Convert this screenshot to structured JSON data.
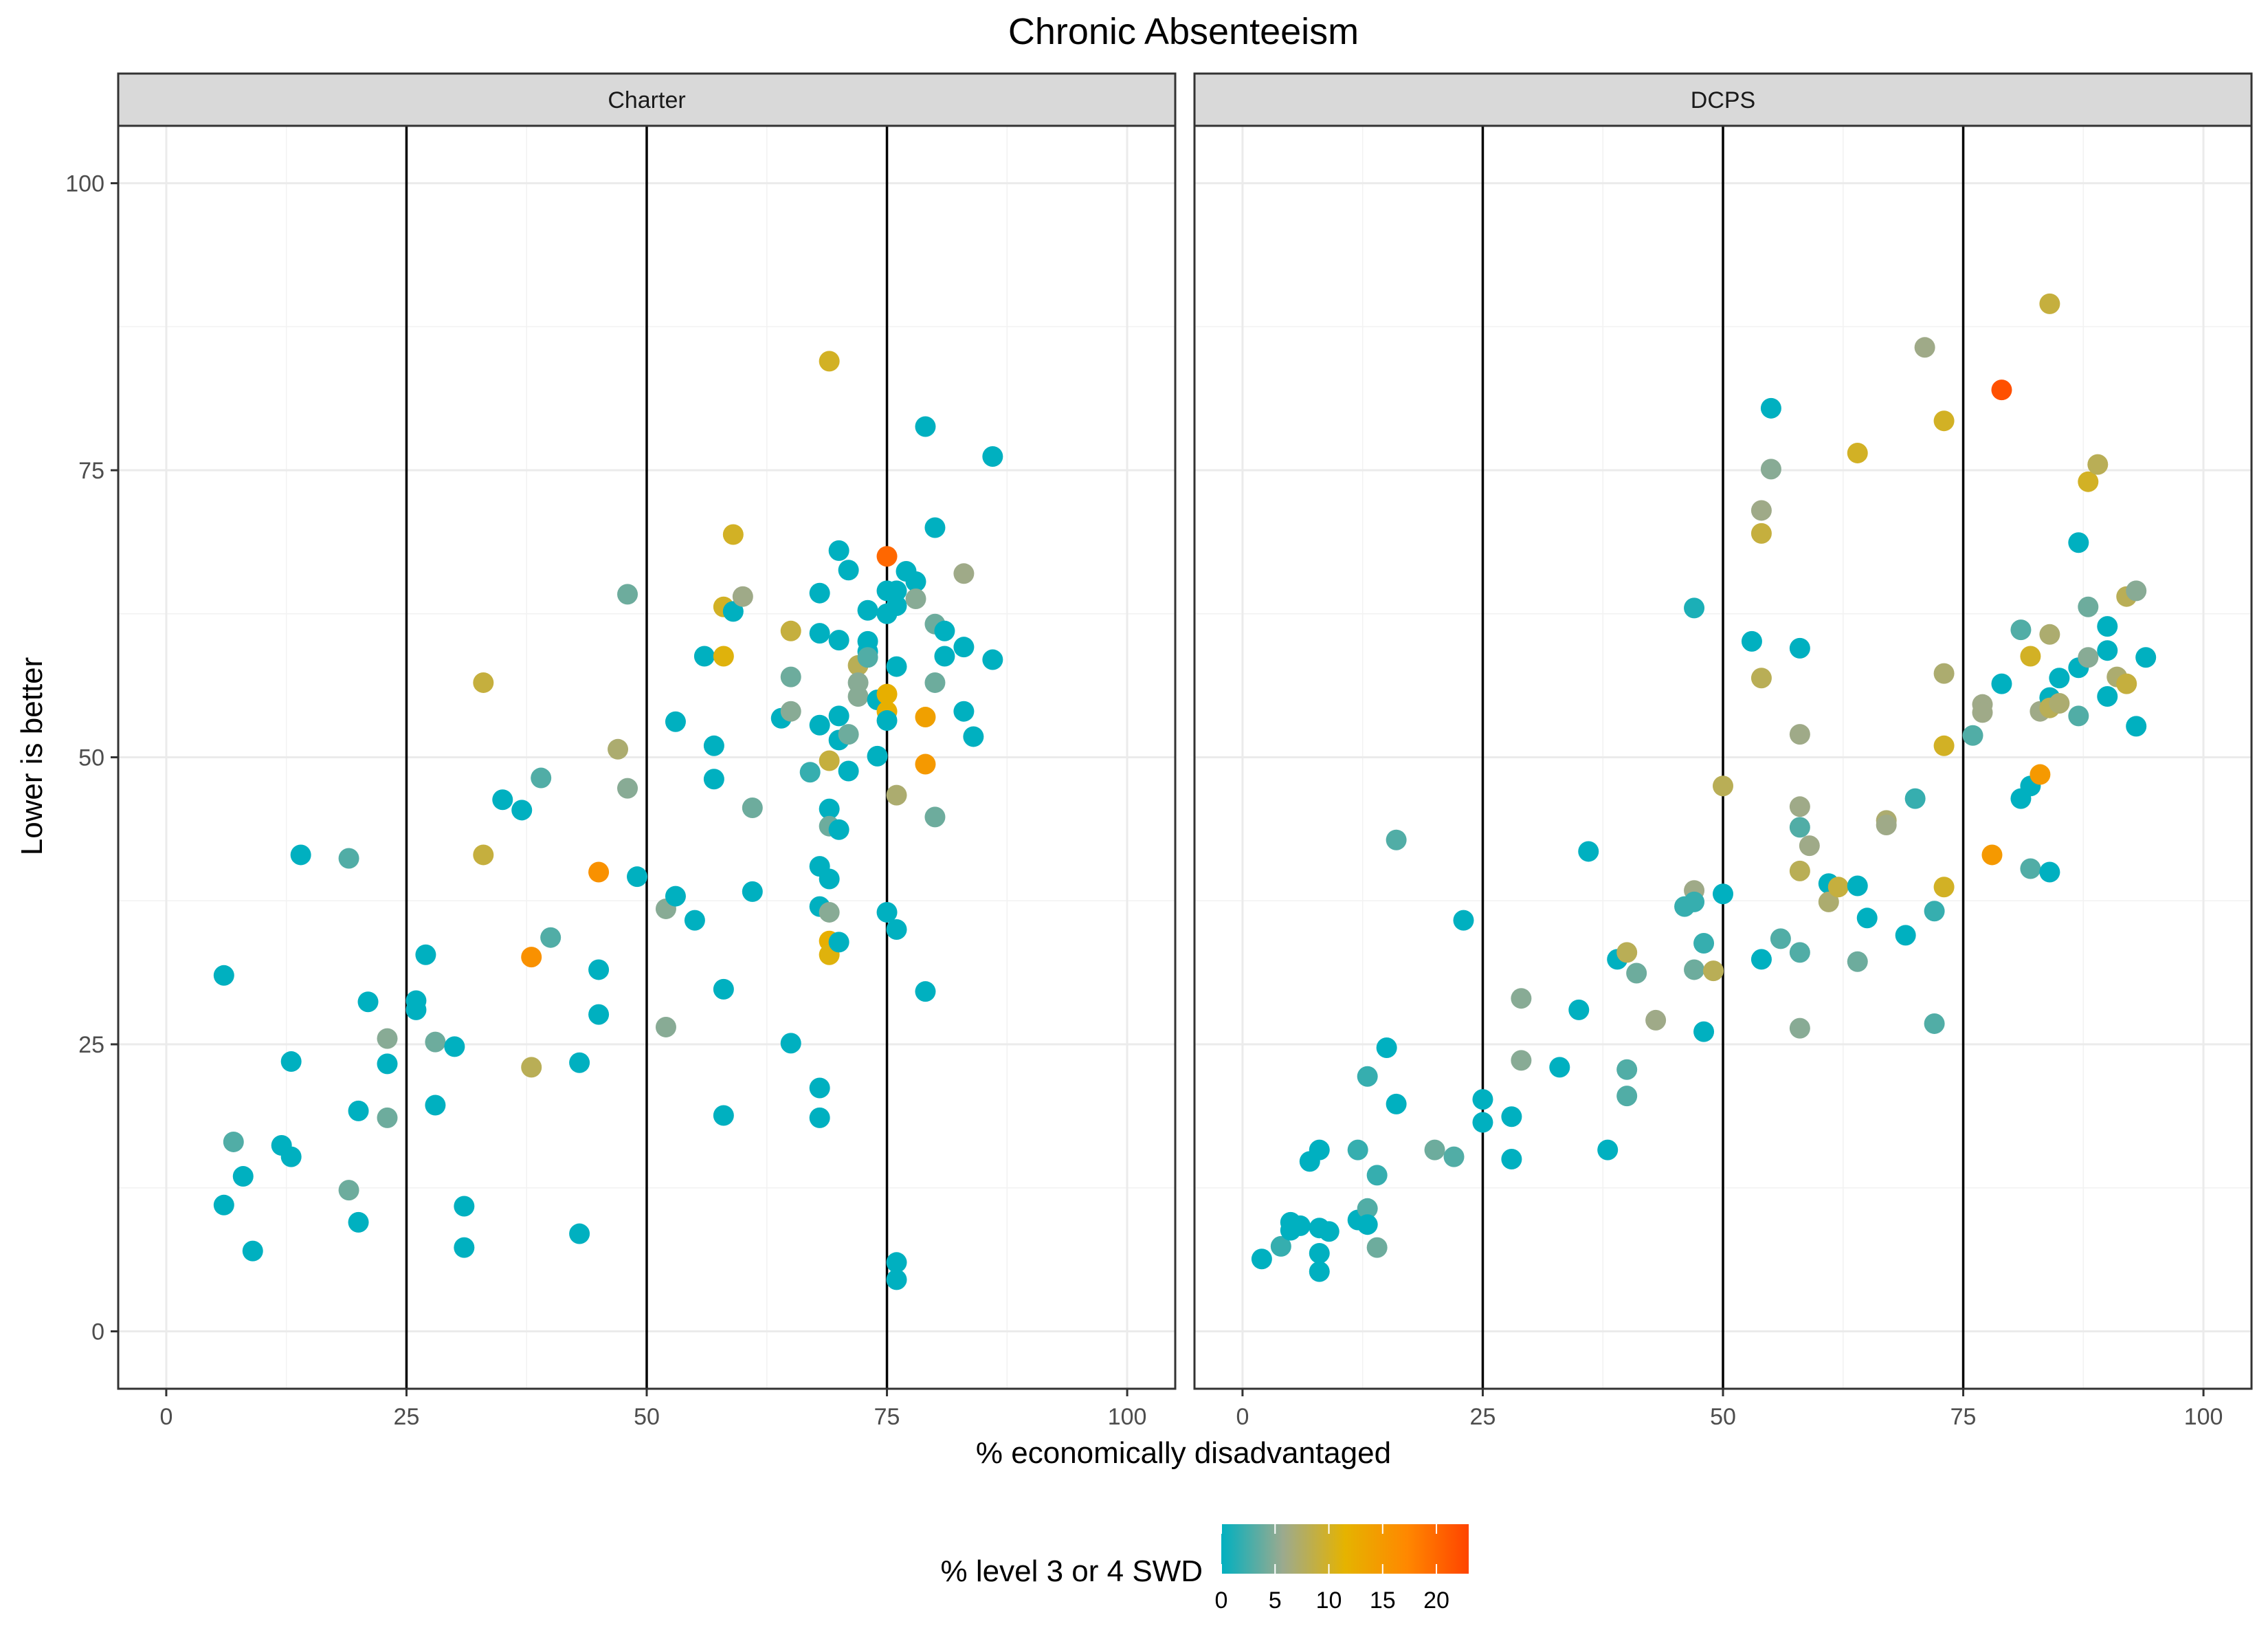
{
  "chart_data": {
    "type": "scatter",
    "title": "Chronic Absenteeism",
    "xlabel": "% economically disadvantaged",
    "ylabel": "Lower is better",
    "xlim": [
      -5,
      105
    ],
    "ylim": [
      -5,
      105
    ],
    "x_ticks": [
      0,
      25,
      50,
      75,
      100
    ],
    "y_ticks": [
      0,
      25,
      50,
      75,
      100
    ],
    "x_tick_labels": [
      "0",
      "25",
      "50",
      "75",
      "100"
    ],
    "y_tick_labels": [
      "0",
      "25",
      "50",
      "75",
      "100"
    ],
    "grid": true,
    "reference_lines_x": [
      25,
      50,
      75
    ],
    "color_scale": {
      "title": "% level 3 or 4 SWD",
      "ticks": [
        0,
        5,
        10,
        15,
        20
      ],
      "tick_labels": [
        "0",
        "5",
        "10",
        "15",
        "20"
      ],
      "range": [
        0,
        23
      ],
      "colors": [
        "#00B0C0",
        "#9CAA8E",
        "#E5B300",
        "#FF8800",
        "#FF4400"
      ]
    },
    "legend_position": "bottom",
    "panels": [
      {
        "name": "Charter",
        "points": [
          [
            6,
            31,
            0
          ],
          [
            6,
            11,
            0
          ],
          [
            7,
            16.5,
            3
          ],
          [
            8,
            13.5,
            0
          ],
          [
            9,
            7,
            0
          ],
          [
            12,
            16.2,
            0
          ],
          [
            13,
            15.2,
            0
          ],
          [
            13,
            23.5,
            0
          ],
          [
            14,
            41.5,
            0
          ],
          [
            19,
            41.2,
            3
          ],
          [
            19,
            12.3,
            4
          ],
          [
            20,
            19.2,
            0
          ],
          [
            20,
            9.5,
            0
          ],
          [
            21,
            28.7,
            0
          ],
          [
            23,
            23.3,
            0
          ],
          [
            23,
            25.5,
            5
          ],
          [
            23,
            18.6,
            4
          ],
          [
            26,
            28.8,
            0
          ],
          [
            26,
            28,
            0
          ],
          [
            27,
            32.8,
            0
          ],
          [
            28,
            25.2,
            4
          ],
          [
            28,
            19.7,
            0
          ],
          [
            30,
            24.8,
            0
          ],
          [
            31,
            10.9,
            0
          ],
          [
            31,
            7.3,
            0
          ],
          [
            33,
            56.5,
            9
          ],
          [
            33,
            41.5,
            9
          ],
          [
            35,
            46.3,
            0
          ],
          [
            37,
            45.4,
            0
          ],
          [
            38,
            32.6,
            16
          ],
          [
            38,
            23,
            8
          ],
          [
            39,
            48.2,
            3
          ],
          [
            40,
            34.3,
            3
          ],
          [
            43,
            23.4,
            0
          ],
          [
            43,
            8.5,
            0
          ],
          [
            45,
            40,
            16
          ],
          [
            45,
            31.5,
            0
          ],
          [
            45,
            27.6,
            0
          ],
          [
            47,
            50.7,
            7
          ],
          [
            48,
            64.2,
            4
          ],
          [
            48,
            47.3,
            5
          ],
          [
            49,
            39.6,
            0
          ],
          [
            52,
            36.8,
            5
          ],
          [
            52,
            26.5,
            5
          ],
          [
            53,
            53.1,
            0
          ],
          [
            53,
            37.9,
            0
          ],
          [
            55,
            35.8,
            0
          ],
          [
            56,
            58.8,
            0
          ],
          [
            57,
            51,
            0
          ],
          [
            57,
            48.1,
            0
          ],
          [
            58,
            63.1,
            10
          ],
          [
            58,
            58.8,
            11
          ],
          [
            58,
            29.8,
            0
          ],
          [
            58,
            18.8,
            0
          ],
          [
            59,
            69.4,
            10
          ],
          [
            59,
            62.7,
            0
          ],
          [
            60,
            64,
            6
          ],
          [
            61,
            45.6,
            4
          ],
          [
            61,
            38.3,
            0
          ],
          [
            64,
            53.4,
            0
          ],
          [
            65,
            61,
            9
          ],
          [
            65,
            57,
            4
          ],
          [
            65,
            54,
            5
          ],
          [
            65,
            25.1,
            0
          ],
          [
            67,
            48.7,
            2
          ],
          [
            68,
            64.3,
            0
          ],
          [
            68,
            60.8,
            0
          ],
          [
            68,
            52.8,
            0
          ],
          [
            68,
            40.5,
            0
          ],
          [
            68,
            37,
            0
          ],
          [
            68,
            21.2,
            0
          ],
          [
            68,
            18.6,
            0
          ],
          [
            69,
            84.5,
            10
          ],
          [
            69,
            49.7,
            9
          ],
          [
            69,
            45.5,
            0
          ],
          [
            69,
            44,
            4
          ],
          [
            69,
            39.4,
            0
          ],
          [
            69,
            36.5,
            5
          ],
          [
            69,
            34,
            12
          ],
          [
            69,
            32.8,
            11
          ],
          [
            70,
            68,
            0
          ],
          [
            70,
            60.2,
            0
          ],
          [
            70,
            53.6,
            0
          ],
          [
            70,
            51.5,
            0
          ],
          [
            70,
            43.7,
            0
          ],
          [
            70,
            33.9,
            0
          ],
          [
            71,
            66.3,
            0
          ],
          [
            71,
            52,
            4
          ],
          [
            71,
            48.8,
            0
          ],
          [
            72,
            58,
            8
          ],
          [
            72,
            56.5,
            5
          ],
          [
            72,
            55.3,
            5
          ],
          [
            73,
            62.8,
            0
          ],
          [
            73,
            60.1,
            0
          ],
          [
            73,
            59.2,
            0
          ],
          [
            73,
            58.7,
            3
          ],
          [
            74,
            55,
            0
          ],
          [
            74,
            50.1,
            0
          ],
          [
            75,
            67.5,
            20
          ],
          [
            75,
            64.5,
            0
          ],
          [
            75,
            62.5,
            0
          ],
          [
            75,
            55.5,
            12
          ],
          [
            75,
            54,
            12
          ],
          [
            75,
            53.2,
            0
          ],
          [
            75,
            36.5,
            0
          ],
          [
            76,
            64.5,
            0
          ],
          [
            76,
            63.2,
            0
          ],
          [
            76,
            57.9,
            0
          ],
          [
            76,
            46.7,
            7
          ],
          [
            76,
            35,
            0
          ],
          [
            76,
            6,
            0
          ],
          [
            76,
            4.5,
            0
          ],
          [
            77,
            66.2,
            0
          ],
          [
            78,
            65.3,
            0
          ],
          [
            78,
            63.8,
            5
          ],
          [
            79,
            78.8,
            0
          ],
          [
            79,
            53.5,
            14
          ],
          [
            79,
            49.4,
            15
          ],
          [
            79,
            29.6,
            0
          ],
          [
            80,
            70,
            0
          ],
          [
            80,
            61.6,
            4
          ],
          [
            80,
            56.5,
            4
          ],
          [
            80,
            44.8,
            4
          ],
          [
            81,
            61,
            0
          ],
          [
            81,
            58.8,
            0
          ],
          [
            83,
            66,
            6
          ],
          [
            83,
            59.6,
            0
          ],
          [
            83,
            54,
            0
          ],
          [
            84,
            51.8,
            0
          ],
          [
            86,
            76.2,
            0
          ],
          [
            86,
            58.5,
            0
          ]
        ]
      },
      {
        "name": "DCPS",
        "points": [
          [
            2,
            6.3,
            0
          ],
          [
            4,
            7.4,
            2
          ],
          [
            5,
            9.5,
            0
          ],
          [
            5,
            8.8,
            0
          ],
          [
            6,
            9.2,
            0
          ],
          [
            7,
            14.8,
            0
          ],
          [
            8,
            15.8,
            0
          ],
          [
            8,
            9,
            0
          ],
          [
            8,
            6.8,
            0
          ],
          [
            8,
            5.2,
            0
          ],
          [
            9,
            8.7,
            0
          ],
          [
            12,
            15.8,
            2
          ],
          [
            12,
            9.7,
            0
          ],
          [
            13,
            22.2,
            2
          ],
          [
            13,
            10.7,
            3
          ],
          [
            13,
            9.3,
            0
          ],
          [
            14,
            13.6,
            2
          ],
          [
            14,
            7.3,
            4
          ],
          [
            15,
            24.7,
            0
          ],
          [
            16,
            42.8,
            3
          ],
          [
            16,
            19.8,
            0
          ],
          [
            20,
            15.8,
            4
          ],
          [
            22,
            15.2,
            3
          ],
          [
            23,
            35.8,
            0
          ],
          [
            25,
            20.2,
            0
          ],
          [
            25,
            18.2,
            0
          ],
          [
            28,
            18.7,
            0
          ],
          [
            28,
            15,
            0
          ],
          [
            29,
            29,
            5
          ],
          [
            29,
            23.6,
            5
          ],
          [
            33,
            23,
            0
          ],
          [
            35,
            28,
            0
          ],
          [
            36,
            41.8,
            0
          ],
          [
            38,
            15.8,
            0
          ],
          [
            39,
            32.4,
            0
          ],
          [
            40,
            33,
            8
          ],
          [
            40,
            22.8,
            3
          ],
          [
            40,
            20.5,
            3
          ],
          [
            41,
            31.2,
            4
          ],
          [
            43,
            27.1,
            6
          ],
          [
            46,
            37,
            2
          ],
          [
            47,
            63,
            1
          ],
          [
            47,
            38.4,
            6
          ],
          [
            47,
            37.4,
            2
          ],
          [
            47,
            31.5,
            4
          ],
          [
            48,
            33.8,
            2
          ],
          [
            48,
            26.1,
            0
          ],
          [
            49,
            31.4,
            8
          ],
          [
            50,
            47.5,
            8
          ],
          [
            50,
            38.1,
            0
          ],
          [
            53,
            60.1,
            0
          ],
          [
            54,
            71.5,
            6
          ],
          [
            54,
            69.5,
            9
          ],
          [
            54,
            56.9,
            8
          ],
          [
            54,
            32.4,
            0
          ],
          [
            55,
            80.4,
            0
          ],
          [
            55,
            75.1,
            5
          ],
          [
            56,
            34.2,
            3
          ],
          [
            58,
            59.5,
            0
          ],
          [
            58,
            52,
            6
          ],
          [
            58,
            45.7,
            6
          ],
          [
            58,
            43.9,
            3
          ],
          [
            58,
            40.1,
            8
          ],
          [
            58,
            33,
            3
          ],
          [
            58,
            26.4,
            5
          ],
          [
            59,
            42.3,
            6
          ],
          [
            61,
            39,
            0
          ],
          [
            61,
            37.4,
            7
          ],
          [
            62,
            38.7,
            9
          ],
          [
            64,
            76.5,
            10
          ],
          [
            64,
            38.8,
            0
          ],
          [
            64,
            32.2,
            4
          ],
          [
            65,
            36,
            0
          ],
          [
            67,
            44.5,
            7
          ],
          [
            67,
            44.1,
            6
          ],
          [
            69,
            34.5,
            0
          ],
          [
            70,
            46.4,
            2
          ],
          [
            71,
            85.7,
            6
          ],
          [
            72,
            36.6,
            2
          ],
          [
            72,
            26.8,
            3
          ],
          [
            73,
            79.3,
            10
          ],
          [
            73,
            57.3,
            7
          ],
          [
            73,
            51,
            10
          ],
          [
            73,
            38.7,
            10
          ],
          [
            76,
            51.9,
            3
          ],
          [
            77,
            54.6,
            6
          ],
          [
            77,
            53.9,
            6
          ],
          [
            78,
            41.5,
            15
          ],
          [
            79,
            82,
            22
          ],
          [
            79,
            56.4,
            0
          ],
          [
            81,
            61.1,
            3
          ],
          [
            81,
            46.4,
            0
          ],
          [
            82,
            58.8,
            10
          ],
          [
            82,
            47.5,
            0
          ],
          [
            82,
            40.3,
            3
          ],
          [
            83,
            54,
            6
          ],
          [
            83,
            48.5,
            15
          ],
          [
            84,
            89.5,
            9
          ],
          [
            84,
            60.7,
            7
          ],
          [
            84,
            55.2,
            0
          ],
          [
            84,
            54.3,
            8
          ],
          [
            84,
            40,
            0
          ],
          [
            85,
            56.9,
            0
          ],
          [
            85,
            54.7,
            7
          ],
          [
            87,
            68.7,
            0
          ],
          [
            87,
            57.8,
            0
          ],
          [
            87,
            53.6,
            3
          ],
          [
            88,
            74,
            10
          ],
          [
            88,
            63.1,
            4
          ],
          [
            88,
            58.7,
            5
          ],
          [
            89,
            75.5,
            8
          ],
          [
            90,
            61.4,
            0
          ],
          [
            90,
            59.3,
            0
          ],
          [
            90,
            55.3,
            0
          ],
          [
            91,
            57,
            7
          ],
          [
            92,
            64,
            8
          ],
          [
            92,
            56.4,
            9
          ],
          [
            93,
            64.5,
            5
          ],
          [
            93,
            52.7,
            0
          ],
          [
            94,
            58.7,
            0
          ]
        ]
      }
    ]
  }
}
